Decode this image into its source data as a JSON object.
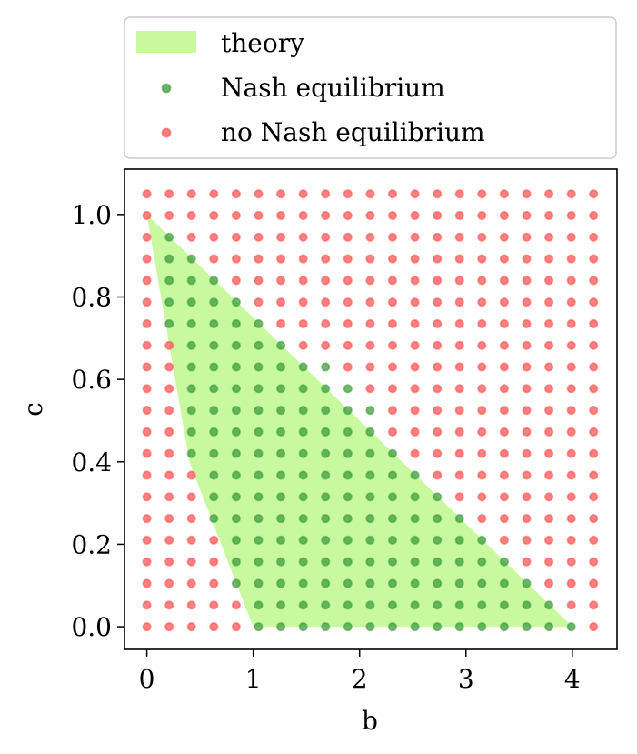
{
  "chart_data": {
    "type": "scatter",
    "title": "",
    "xlabel": "b",
    "ylabel": "c",
    "xlim": [
      -0.21,
      4.42
    ],
    "ylim": [
      -0.055,
      1.11
    ],
    "x_ticks": [
      0,
      1,
      2,
      3,
      4
    ],
    "x_tick_labels": [
      "0",
      "1",
      "2",
      "3",
      "4"
    ],
    "y_ticks": [
      0.0,
      0.2,
      0.4,
      0.6,
      0.8,
      1.0
    ],
    "y_tick_labels": [
      "0.0",
      "0.2",
      "0.4",
      "0.6",
      "0.8",
      "1.0"
    ],
    "grid": false,
    "legend_placement": "above plot",
    "grid_points": {
      "b_values": [
        0.0,
        0.21,
        0.42,
        0.63,
        0.84,
        1.05,
        1.26,
        1.47,
        1.68,
        1.89,
        2.1,
        2.31,
        2.52,
        2.73,
        2.94,
        3.15,
        3.36,
        3.57,
        3.78,
        3.99,
        4.2
      ],
      "c_values": [
        0.0,
        0.0525,
        0.105,
        0.1575,
        0.21,
        0.2625,
        0.315,
        0.3675,
        0.42,
        0.4725,
        0.525,
        0.5775,
        0.63,
        0.6825,
        0.735,
        0.7875,
        0.84,
        0.8925,
        0.945,
        0.9975,
        1.05
      ],
      "nash_equilibrium_ranges": [
        {
          "c": 0.0,
          "b": [
            1.05,
            3.99
          ]
        },
        {
          "c": 0.0525,
          "b": [
            1.05,
            3.78
          ]
        },
        {
          "c": 0.105,
          "b": [
            0.84,
            3.57
          ]
        },
        {
          "c": 0.1575,
          "b": [
            0.84,
            3.36
          ]
        },
        {
          "c": 0.21,
          "b": [
            0.84,
            3.15
          ]
        },
        {
          "c": 0.2625,
          "b": [
            0.63,
            2.94
          ]
        },
        {
          "c": 0.315,
          "b": [
            0.63,
            2.73
          ]
        },
        {
          "c": 0.3675,
          "b": [
            0.63,
            2.52
          ]
        },
        {
          "c": 0.42,
          "b": [
            0.42,
            2.31
          ]
        },
        {
          "c": 0.4725,
          "b": [
            0.42,
            2.1
          ]
        },
        {
          "c": 0.525,
          "b": [
            0.42,
            2.1
          ]
        },
        {
          "c": 0.5775,
          "b": [
            0.42,
            1.89
          ]
        },
        {
          "c": 0.63,
          "b": [
            0.42,
            1.68
          ]
        },
        {
          "c": 0.6825,
          "b": [
            0.42,
            1.26
          ]
        },
        {
          "c": 0.735,
          "b": [
            0.21,
            1.05
          ]
        },
        {
          "c": 0.7875,
          "b": [
            0.21,
            0.84
          ]
        },
        {
          "c": 0.84,
          "b": [
            0.21,
            0.63
          ]
        },
        {
          "c": 0.8925,
          "b": [
            0.21,
            0.42
          ]
        },
        {
          "c": 0.945,
          "b": [
            0.21,
            0.21
          ]
        }
      ]
    },
    "theory_region": [
      [
        0,
        1.0
      ],
      [
        0.4,
        0.4
      ],
      [
        1.0,
        0.0
      ],
      [
        4.0,
        0.0
      ],
      [
        0,
        1.0
      ]
    ],
    "series": [
      {
        "name": "theory",
        "kind": "fill",
        "color": "#c8f99e"
      },
      {
        "name": "Nash equilibrium",
        "kind": "scatter",
        "color": "#3a9a3a"
      },
      {
        "name": "no Nash equilibrium",
        "kind": "scatter",
        "color": "#ff4f4f"
      }
    ]
  }
}
